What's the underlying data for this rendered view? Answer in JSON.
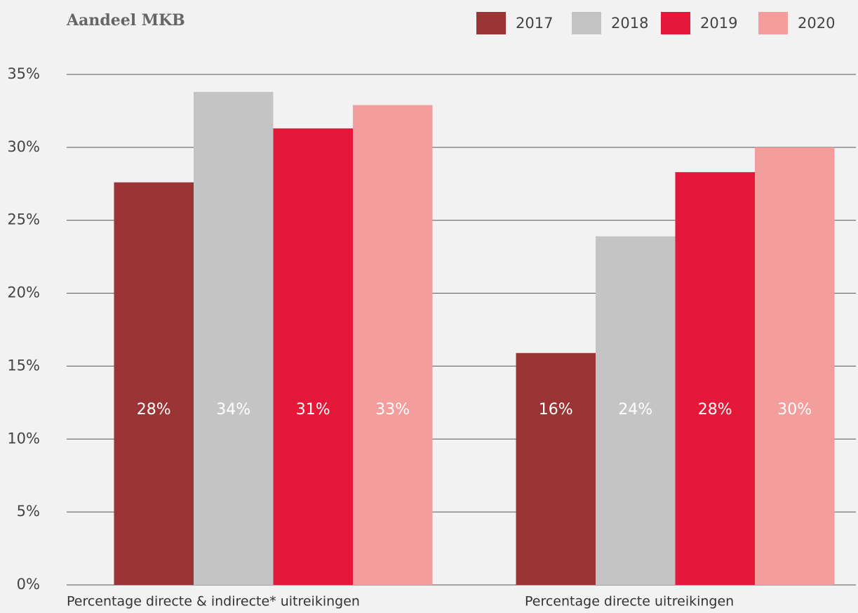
{
  "chart_data": {
    "type": "bar",
    "title": "Aandeel MKB",
    "categories": [
      "Percentage directe & indirecte* uitreikingen",
      "Percentage directe uitreikingen"
    ],
    "series": [
      {
        "name": "2017",
        "color": "#9b3434",
        "values": [
          27.6,
          15.9
        ],
        "value_labels": [
          "28%",
          "16%"
        ]
      },
      {
        "name": "2018",
        "color": "#c4c4c4",
        "values": [
          33.8,
          23.9
        ],
        "value_labels": [
          "34%",
          "24%"
        ]
      },
      {
        "name": "2019",
        "color": "#e4193a",
        "values": [
          31.3,
          28.3
        ],
        "value_labels": [
          "31%",
          "28%"
        ]
      },
      {
        "name": "2020",
        "color": "#f39e9d",
        "values": [
          32.9,
          30.0
        ],
        "value_labels": [
          "33%",
          "30%"
        ]
      }
    ],
    "ylim": [
      0,
      35
    ],
    "yticks": [
      {
        "value": 0,
        "label": "0%"
      },
      {
        "value": 5,
        "label": "5%"
      },
      {
        "value": 10,
        "label": "10%"
      },
      {
        "value": 15,
        "label": "15%"
      },
      {
        "value": 20,
        "label": "20%"
      },
      {
        "value": 25,
        "label": "25%"
      },
      {
        "value": 30,
        "label": "30%"
      },
      {
        "value": 35,
        "label": "35%"
      }
    ],
    "grid": true,
    "legend": "top-right"
  }
}
